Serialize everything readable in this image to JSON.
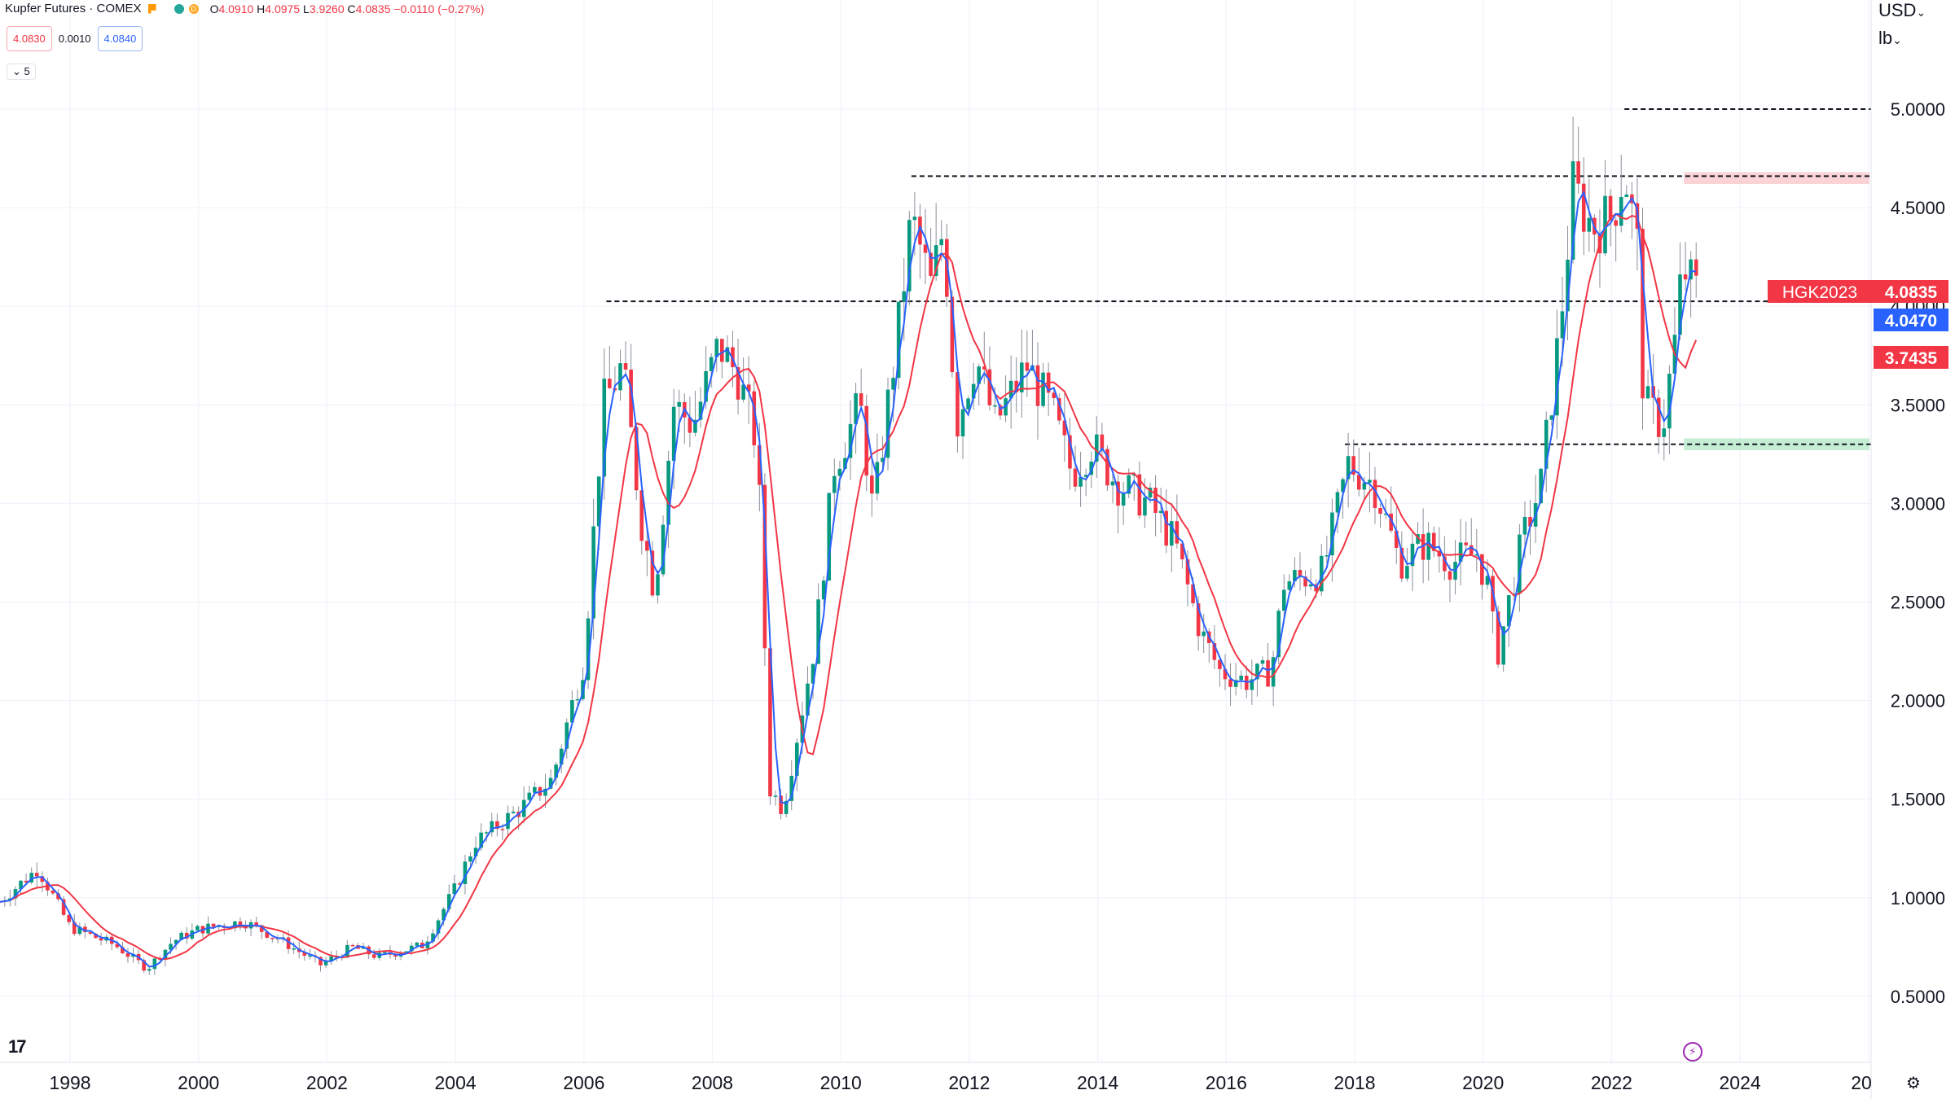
{
  "header": {
    "symbol_title": "Kupfer Futures · COMEX",
    "ohlc": {
      "o_label": "O",
      "o": "4.0910",
      "h_label": "H",
      "h": "4.0975",
      "l_label": "L",
      "l": "3.9260",
      "c_label": "C",
      "c": "4.0835",
      "change": "−0.0110 (−0.27%)"
    },
    "market_status_letter": "D",
    "bid": "4.0830",
    "spread": "0.0010",
    "ask": "4.0840",
    "indicators_collapse": "5"
  },
  "axis": {
    "unit_line1": "USD",
    "unit_line2": "lb"
  },
  "price_labels": {
    "symbol": "HGK2023",
    "last": "4.0835",
    "ma_fast": "4.0470",
    "ma_slow": "3.7435"
  },
  "colors": {
    "up": "#089981",
    "down": "#f23645",
    "ma_fast": "#2962ff",
    "ma_slow": "#f23645",
    "resistance_zone": "#f8c8cc",
    "support_zone": "#b7e8c9"
  },
  "icons": [
    "tradingview-logo-icon",
    "settings-gear-icon",
    "lightning-icon",
    "chevron-down-icon",
    "flag-icon"
  ],
  "chart_data": {
    "type": "candlestick",
    "x_axis_labels": [
      "1998",
      "2000",
      "2002",
      "2004",
      "2006",
      "2008",
      "2010",
      "2012",
      "2014",
      "2016",
      "2018",
      "2020",
      "2022",
      "2024",
      "20"
    ],
    "y_axis_labels": [
      "5.0000",
      "4.5000",
      "4.0000",
      "3.5000",
      "3.0000",
      "2.5000",
      "2.0000",
      "1.5000",
      "1.0000",
      "0.5000"
    ],
    "ylim": [
      0.2,
      5.5
    ],
    "xlim": [
      1996.9,
      2026.1
    ],
    "grid": true,
    "bar_interval": "monthly",
    "close_anchors": [
      [
        1996.9,
        0.98
      ],
      [
        1997.5,
        1.15
      ],
      [
        1998.0,
        0.85
      ],
      [
        1998.7,
        0.76
      ],
      [
        1999.2,
        0.64
      ],
      [
        1999.6,
        0.78
      ],
      [
        2000.0,
        0.84
      ],
      [
        2000.7,
        0.88
      ],
      [
        2001.2,
        0.8
      ],
      [
        2001.9,
        0.66
      ],
      [
        2002.4,
        0.75
      ],
      [
        2002.8,
        0.7
      ],
      [
        2003.5,
        0.76
      ],
      [
        2004.0,
        1.05
      ],
      [
        2004.3,
        1.28
      ],
      [
        2005.0,
        1.45
      ],
      [
        2005.5,
        1.6
      ],
      [
        2006.0,
        2.2
      ],
      [
        2006.3,
        3.5
      ],
      [
        2006.6,
        3.7
      ],
      [
        2006.9,
        2.9
      ],
      [
        2007.1,
        2.55
      ],
      [
        2007.4,
        3.5
      ],
      [
        2007.7,
        3.4
      ],
      [
        2008.1,
        3.8
      ],
      [
        2008.4,
        3.65
      ],
      [
        2008.7,
        3.3
      ],
      [
        2008.9,
        1.55
      ],
      [
        2009.1,
        1.45
      ],
      [
        2009.6,
        2.3
      ],
      [
        2009.9,
        3.2
      ],
      [
        2010.3,
        3.5
      ],
      [
        2010.5,
        2.95
      ],
      [
        2010.9,
        3.9
      ],
      [
        2011.1,
        4.45
      ],
      [
        2011.4,
        4.1
      ],
      [
        2011.6,
        4.4
      ],
      [
        2011.8,
        3.4
      ],
      [
        2012.1,
        3.75
      ],
      [
        2012.4,
        3.4
      ],
      [
        2012.9,
        3.7
      ],
      [
        2013.3,
        3.45
      ],
      [
        2013.6,
        3.15
      ],
      [
        2013.9,
        3.3
      ],
      [
        2014.3,
        3.1
      ],
      [
        2014.8,
        3.0
      ],
      [
        2015.2,
        2.8
      ],
      [
        2015.6,
        2.35
      ],
      [
        2015.9,
        2.15
      ],
      [
        2016.3,
        2.1
      ],
      [
        2016.7,
        2.15
      ],
      [
        2016.9,
        2.6
      ],
      [
        2017.5,
        2.65
      ],
      [
        2017.9,
        3.2
      ],
      [
        2018.3,
        3.1
      ],
      [
        2018.7,
        2.7
      ],
      [
        2019.1,
        2.8
      ],
      [
        2019.5,
        2.7
      ],
      [
        2019.9,
        2.75
      ],
      [
        2020.1,
        2.55
      ],
      [
        2020.2,
        2.2
      ],
      [
        2020.6,
        2.8
      ],
      [
        2020.9,
        3.1
      ],
      [
        2021.2,
        3.9
      ],
      [
        2021.4,
        4.6
      ],
      [
        2021.7,
        4.4
      ],
      [
        2022.0,
        4.45
      ],
      [
        2022.2,
        4.7
      ],
      [
        2022.4,
        4.3
      ],
      [
        2022.5,
        3.5
      ],
      [
        2022.8,
        3.4
      ],
      [
        2023.0,
        3.85
      ],
      [
        2023.1,
        4.2
      ],
      [
        2023.3,
        4.08
      ]
    ],
    "moving_averages": [
      {
        "color": "#2962ff",
        "last_value": 4.047
      },
      {
        "color": "#f23645",
        "last_value": 3.7435
      }
    ],
    "annotations": [
      {
        "type": "horizontal_dashed",
        "price": 4.025,
        "from": 2006.35,
        "to": 2026.1
      },
      {
        "type": "horizontal_dashed",
        "price": 4.66,
        "from": 2011.1,
        "to": 2026.1
      },
      {
        "type": "horizontal_dashed",
        "price": 5.0,
        "from": 2022.2,
        "to": 2026.1
      },
      {
        "type": "horizontal_dashed",
        "price": 3.3,
        "from": 2017.85,
        "to": 2026.1
      },
      {
        "type": "zone",
        "price_low": 4.62,
        "price_high": 4.68,
        "from": 2023.0,
        "to": 2026.1,
        "color": "#f8c8cc"
      },
      {
        "type": "zone",
        "price_low": 3.27,
        "price_high": 3.33,
        "from": 2023.0,
        "to": 2026.1,
        "color": "#b7e8c9"
      }
    ]
  }
}
